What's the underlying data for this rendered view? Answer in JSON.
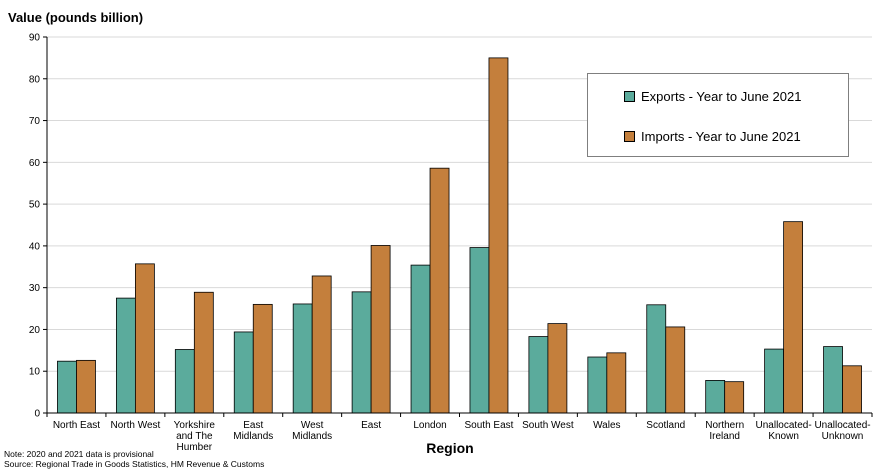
{
  "chart_data": {
    "type": "bar",
    "ylabel": "Value (pounds billion)",
    "xlabel": "Region",
    "ylim": [
      0,
      90
    ],
    "yticks": [
      0,
      10,
      20,
      30,
      40,
      50,
      60,
      70,
      80,
      90
    ],
    "grid": true,
    "legend_position": "top-right",
    "categories": [
      [
        "North East"
      ],
      [
        "North West"
      ],
      [
        "Yorkshire",
        "and The",
        "Humber"
      ],
      [
        "East",
        "Midlands"
      ],
      [
        "West",
        "Midlands"
      ],
      [
        "East"
      ],
      [
        "London"
      ],
      [
        "South East"
      ],
      [
        "South West"
      ],
      [
        "Wales"
      ],
      [
        "Scotland"
      ],
      [
        "Northern",
        "Ireland"
      ],
      [
        "Unallocated-",
        "Known"
      ],
      [
        "Unallocated-",
        "Unknown"
      ]
    ],
    "series": [
      {
        "name": "Exports - Year to June 2021",
        "color": "#5bab9c",
        "values": [
          12.4,
          27.5,
          15.2,
          19.4,
          26.1,
          29.0,
          35.4,
          39.6,
          18.3,
          13.4,
          25.9,
          7.8,
          15.3,
          15.9
        ]
      },
      {
        "name": "Imports - Year to June 2021",
        "color": "#c47f3c",
        "values": [
          12.6,
          35.7,
          28.9,
          26.0,
          32.8,
          40.1,
          58.6,
          85.0,
          21.4,
          14.4,
          20.6,
          7.5,
          45.8,
          11.3
        ]
      }
    ]
  },
  "notes": {
    "line1": "Note: 2020 and 2021 data is provisional",
    "line2": "Source: Regional Trade in Goods Statistics, HM Revenue & Customs"
  }
}
